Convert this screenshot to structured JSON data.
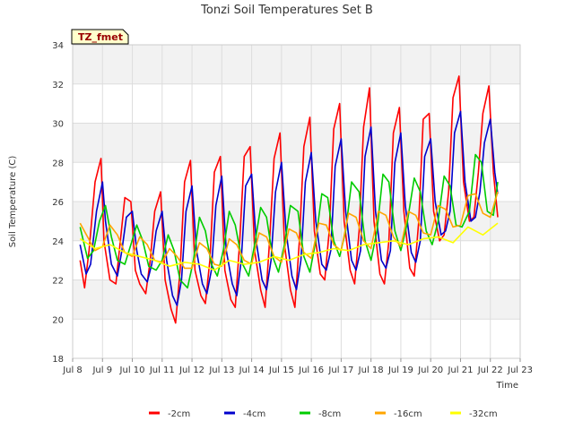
{
  "chart_data": {
    "type": "line",
    "title": "Tonzi Soil Temperatures Set B",
    "xlabel": "Time",
    "ylabel": "Soil Temperature (C)",
    "xlim": [
      8.0,
      23.0
    ],
    "ylim": [
      18,
      34
    ],
    "grid": true,
    "legend_placement": "bottom",
    "tag_label": "TZ_fmet",
    "x_ticks": [
      {
        "value": 8,
        "label": "Jul 8"
      },
      {
        "value": 9,
        "label": "Jul 9"
      },
      {
        "value": 10,
        "label": "Jul 10"
      },
      {
        "value": 11,
        "label": "Jul 11"
      },
      {
        "value": 12,
        "label": "Jul 12"
      },
      {
        "value": 13,
        "label": "Jul 13"
      },
      {
        "value": 14,
        "label": "Jul 14"
      },
      {
        "value": 15,
        "label": "Jul 15"
      },
      {
        "value": 16,
        "label": "Jul 16"
      },
      {
        "value": 17,
        "label": "Jul 17"
      },
      {
        "value": 18,
        "label": "Jul 18"
      },
      {
        "value": 19,
        "label": "Jul 19"
      },
      {
        "value": 20,
        "label": "Jul 20"
      },
      {
        "value": 21,
        "label": "Jul 21"
      },
      {
        "value": 22,
        "label": "Jul 22"
      },
      {
        "value": 23,
        "label": "Jul 23"
      }
    ],
    "y_ticks": [
      18,
      20,
      22,
      24,
      26,
      28,
      30,
      32,
      34
    ],
    "series": [
      {
        "name": "-2cm",
        "color": "#ff0000",
        "x": [
          8.25,
          8.4,
          8.55,
          8.75,
          8.95,
          9.05,
          9.25,
          9.45,
          9.6,
          9.75,
          9.95,
          10.1,
          10.25,
          10.45,
          10.6,
          10.75,
          10.95,
          11.1,
          11.3,
          11.45,
          11.6,
          11.75,
          11.95,
          12.1,
          12.3,
          12.45,
          12.6,
          12.75,
          12.95,
          13.1,
          13.3,
          13.45,
          13.6,
          13.75,
          13.95,
          14.1,
          14.3,
          14.45,
          14.6,
          14.75,
          14.95,
          15.1,
          15.3,
          15.45,
          15.6,
          15.75,
          15.95,
          16.1,
          16.3,
          16.45,
          16.6,
          16.75,
          16.95,
          17.1,
          17.3,
          17.45,
          17.6,
          17.75,
          17.95,
          18.1,
          18.3,
          18.45,
          18.6,
          18.75,
          18.95,
          19.1,
          19.3,
          19.45,
          19.6,
          19.75,
          19.95,
          20.1,
          20.3,
          20.45,
          20.6,
          20.75,
          20.95,
          21.1,
          21.3,
          21.45,
          21.6,
          21.75,
          21.95,
          22.1,
          22.25
        ],
        "y": [
          23.0,
          21.6,
          23.5,
          27.0,
          28.2,
          24.0,
          22.0,
          21.8,
          24.0,
          26.2,
          26.0,
          22.5,
          21.8,
          21.3,
          23.0,
          25.5,
          26.5,
          22.0,
          20.5,
          19.8,
          22.5,
          27.0,
          28.1,
          22.5,
          21.2,
          20.8,
          23.0,
          27.5,
          28.3,
          22.5,
          21.0,
          20.6,
          24.0,
          28.3,
          28.8,
          23.5,
          21.5,
          20.6,
          24.0,
          28.2,
          29.5,
          23.8,
          21.5,
          20.6,
          24.0,
          28.8,
          30.3,
          24.5,
          22.3,
          22.0,
          24.5,
          29.7,
          31.0,
          25.0,
          22.5,
          21.8,
          24.5,
          29.8,
          31.8,
          25.0,
          22.3,
          21.8,
          24.0,
          29.5,
          30.8,
          25.5,
          22.6,
          22.2,
          25.0,
          30.2,
          30.5,
          25.5,
          24.0,
          24.3,
          26.5,
          31.3,
          32.4,
          27.0,
          25.0,
          25.2,
          27.5,
          30.5,
          31.9,
          27.5,
          25.2
        ]
      },
      {
        "name": "-4cm",
        "color": "#0000cc",
        "x": [
          8.25,
          8.45,
          8.6,
          8.8,
          9.0,
          9.1,
          9.3,
          9.5,
          9.65,
          9.8,
          10.0,
          10.15,
          10.3,
          10.5,
          10.65,
          10.8,
          11.0,
          11.15,
          11.35,
          11.5,
          11.65,
          11.8,
          12.0,
          12.15,
          12.35,
          12.5,
          12.65,
          12.8,
          13.0,
          13.15,
          13.35,
          13.5,
          13.65,
          13.8,
          14.0,
          14.15,
          14.35,
          14.5,
          14.65,
          14.8,
          15.0,
          15.15,
          15.35,
          15.5,
          15.65,
          15.8,
          16.0,
          16.15,
          16.35,
          16.5,
          16.65,
          16.8,
          17.0,
          17.15,
          17.35,
          17.5,
          17.65,
          17.8,
          18.0,
          18.15,
          18.35,
          18.5,
          18.65,
          18.8,
          19.0,
          19.15,
          19.35,
          19.5,
          19.65,
          19.8,
          20.0,
          20.15,
          20.35,
          20.5,
          20.65,
          20.8,
          21.0,
          21.15,
          21.35,
          21.5,
          21.65,
          21.8,
          22.0,
          22.15,
          22.25
        ],
        "y": [
          23.8,
          22.3,
          22.8,
          25.5,
          27.0,
          25.0,
          22.8,
          22.2,
          23.5,
          25.2,
          25.5,
          23.5,
          22.3,
          21.9,
          22.8,
          24.5,
          25.5,
          23.0,
          21.2,
          20.7,
          22.0,
          25.5,
          26.8,
          23.5,
          21.8,
          21.3,
          22.5,
          25.8,
          27.3,
          23.5,
          21.8,
          21.2,
          23.0,
          26.8,
          27.4,
          24.0,
          22.0,
          21.5,
          23.0,
          26.5,
          28.0,
          24.5,
          22.2,
          21.5,
          23.0,
          27.0,
          28.5,
          25.0,
          22.8,
          22.5,
          23.5,
          27.8,
          29.2,
          25.5,
          23.0,
          22.5,
          23.5,
          28.3,
          29.8,
          25.5,
          23.0,
          22.6,
          23.5,
          28.0,
          29.5,
          25.8,
          23.4,
          22.9,
          24.0,
          28.3,
          29.2,
          26.0,
          24.3,
          24.5,
          25.5,
          29.5,
          30.6,
          27.0,
          25.0,
          25.2,
          26.5,
          29.0,
          30.2,
          27.5,
          26.4
        ]
      },
      {
        "name": "-8cm",
        "color": "#00cc00",
        "x": [
          8.25,
          8.5,
          8.7,
          8.9,
          9.1,
          9.3,
          9.5,
          9.75,
          9.95,
          10.15,
          10.35,
          10.55,
          10.8,
          11.0,
          11.2,
          11.4,
          11.6,
          11.85,
          12.05,
          12.25,
          12.45,
          12.65,
          12.85,
          13.05,
          13.25,
          13.45,
          13.7,
          13.9,
          14.1,
          14.3,
          14.5,
          14.7,
          14.9,
          15.1,
          15.3,
          15.55,
          15.75,
          15.95,
          16.15,
          16.35,
          16.55,
          16.75,
          16.95,
          17.15,
          17.35,
          17.6,
          17.8,
          18.0,
          18.2,
          18.4,
          18.6,
          18.8,
          19.0,
          19.2,
          19.45,
          19.65,
          19.85,
          20.05,
          20.25,
          20.45,
          20.65,
          20.85,
          21.05,
          21.3,
          21.5,
          21.7,
          21.9,
          22.1,
          22.25
        ],
        "y": [
          24.7,
          23.1,
          23.5,
          25.0,
          25.8,
          24.2,
          23.0,
          22.8,
          23.8,
          24.8,
          24.0,
          22.7,
          22.5,
          23.0,
          24.3,
          23.5,
          22.0,
          21.6,
          23.0,
          25.2,
          24.5,
          22.8,
          22.2,
          23.5,
          25.5,
          24.8,
          22.8,
          22.2,
          23.8,
          25.7,
          25.2,
          23.2,
          22.4,
          23.8,
          25.8,
          25.5,
          23.2,
          22.4,
          24.0,
          26.4,
          26.2,
          24.0,
          23.2,
          24.5,
          27.0,
          26.5,
          24.0,
          23.0,
          24.5,
          27.4,
          27.0,
          24.5,
          23.5,
          24.8,
          27.2,
          26.5,
          24.5,
          23.8,
          25.0,
          27.3,
          26.8,
          24.8,
          24.7,
          25.5,
          28.4,
          28.0,
          25.5,
          25.3,
          27.0
        ]
      },
      {
        "name": "-16cm",
        "color": "#ffa500",
        "x": [
          8.25,
          8.5,
          8.75,
          9.0,
          9.25,
          9.5,
          9.75,
          10.0,
          10.25,
          10.5,
          10.75,
          11.0,
          11.25,
          11.5,
          11.75,
          12.0,
          12.25,
          12.5,
          12.75,
          13.0,
          13.25,
          13.5,
          13.75,
          14.0,
          14.25,
          14.5,
          14.75,
          15.0,
          15.25,
          15.5,
          15.75,
          16.0,
          16.25,
          16.5,
          16.75,
          17.0,
          17.25,
          17.5,
          17.75,
          18.0,
          18.25,
          18.5,
          18.75,
          19.0,
          19.25,
          19.5,
          19.75,
          20.0,
          20.25,
          20.5,
          20.75,
          21.0,
          21.25,
          21.5,
          21.75,
          22.0,
          22.25
        ],
        "y": [
          24.9,
          24.2,
          23.5,
          23.7,
          24.8,
          24.3,
          23.4,
          23.2,
          24.2,
          23.8,
          23.0,
          22.9,
          23.6,
          23.2,
          22.6,
          22.6,
          23.9,
          23.6,
          22.8,
          22.7,
          24.1,
          23.8,
          23.0,
          22.8,
          24.4,
          24.2,
          23.2,
          22.9,
          24.6,
          24.4,
          23.4,
          23.1,
          24.9,
          24.8,
          23.8,
          23.5,
          25.4,
          25.2,
          24.0,
          23.6,
          25.5,
          25.3,
          24.2,
          23.7,
          25.5,
          25.3,
          24.4,
          24.3,
          25.8,
          25.6,
          24.7,
          24.8,
          26.3,
          26.4,
          25.4,
          25.2,
          26.5
        ]
      },
      {
        "name": "-32cm",
        "color": "#ffff00",
        "x": [
          8.25,
          8.75,
          9.25,
          9.75,
          10.25,
          10.75,
          11.25,
          11.75,
          12.25,
          12.75,
          13.25,
          13.75,
          14.25,
          14.75,
          15.25,
          15.75,
          16.25,
          16.75,
          17.25,
          17.75,
          18.25,
          18.75,
          19.25,
          19.75,
          20.25,
          20.75,
          21.25,
          21.75,
          22.25
        ],
        "y": [
          24.1,
          23.6,
          23.8,
          23.4,
          23.2,
          23.0,
          22.7,
          22.9,
          22.8,
          22.5,
          23.0,
          22.8,
          22.9,
          23.2,
          23.0,
          23.3,
          23.4,
          23.6,
          23.5,
          23.8,
          23.9,
          24.0,
          23.8,
          24.1,
          24.2,
          23.9,
          24.7,
          24.3,
          24.9
        ]
      }
    ]
  }
}
